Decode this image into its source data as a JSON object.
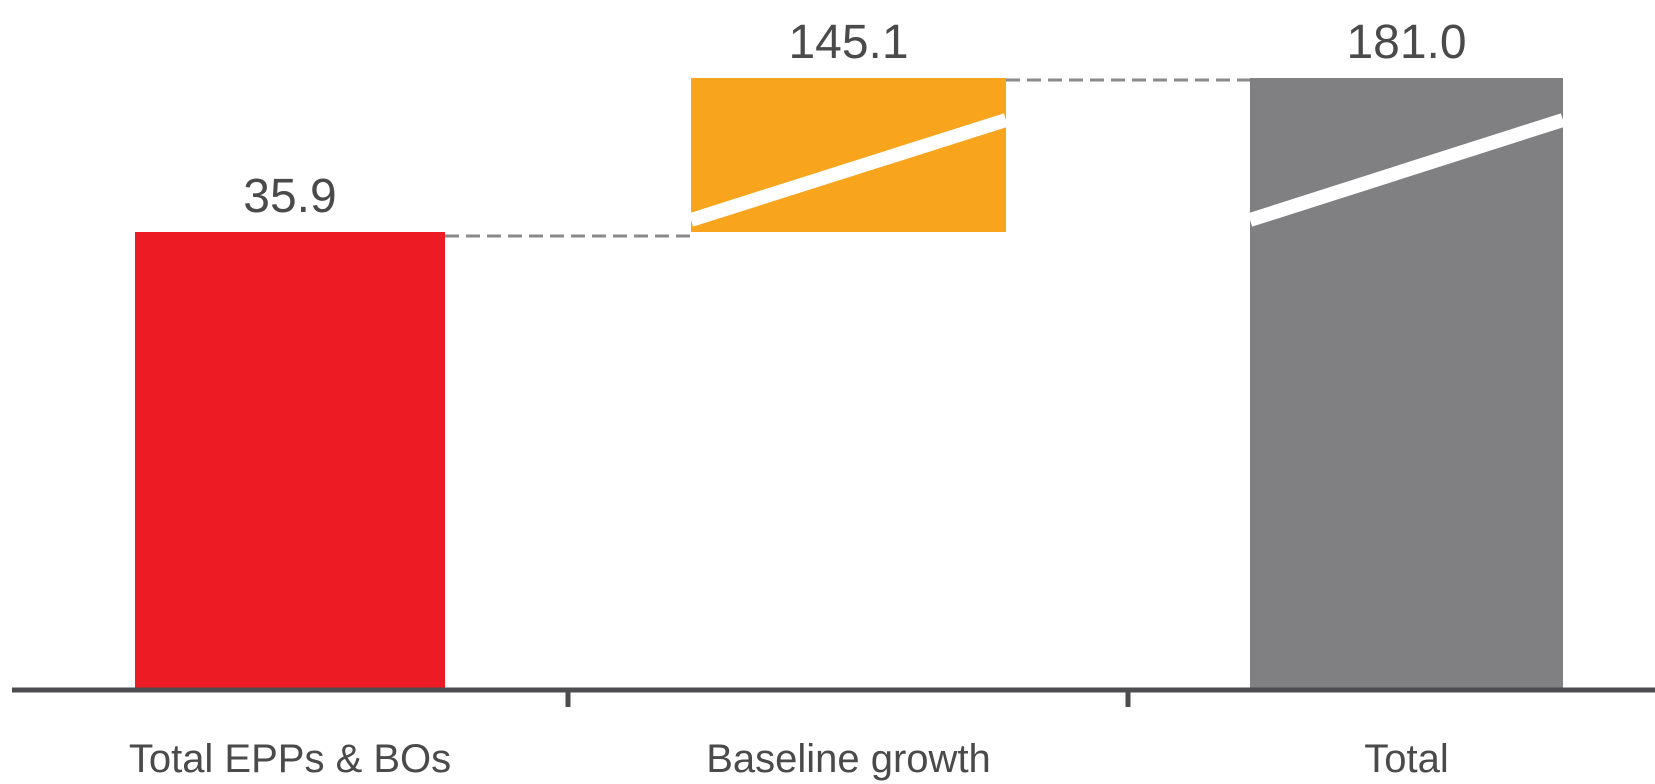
{
  "chart_data": {
    "type": "bar",
    "subtype": "waterfall",
    "categories": [
      "Total EPPs & BOs",
      "Baseline growth",
      "Total"
    ],
    "values": [
      35.9,
      145.1,
      181.0
    ],
    "value_labels": [
      "35.9",
      "145.1",
      "181.0"
    ],
    "bar_roles": [
      "total",
      "increment",
      "total"
    ],
    "colors": [
      "#ED1C24",
      "#F8A51D",
      "#808083"
    ],
    "axis_break": true,
    "connectors": "dashed",
    "gridlines": false,
    "title": "",
    "xlabel": "",
    "ylabel": ""
  }
}
